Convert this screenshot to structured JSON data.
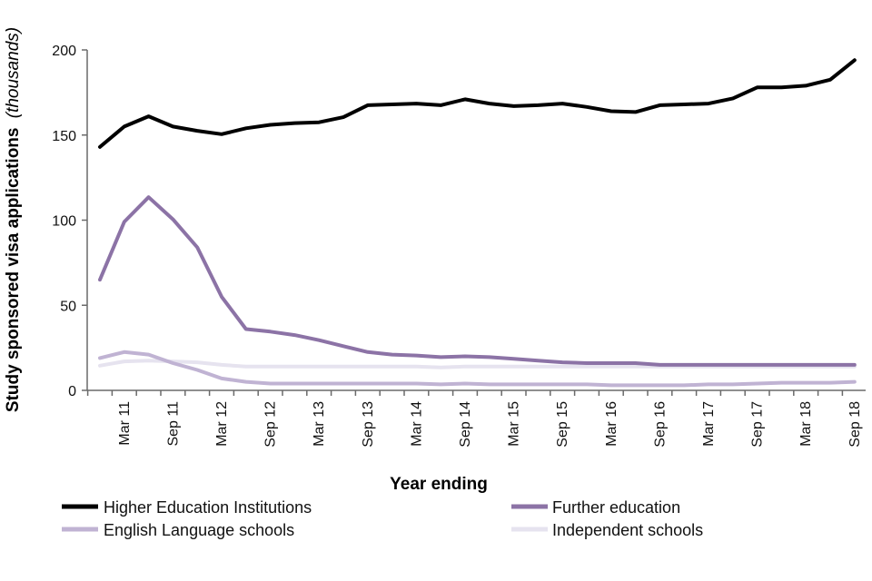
{
  "chart_data": {
    "type": "line",
    "title": "",
    "xlabel": "Year ending",
    "ylabel_main": "Study sponsored visa applications",
    "ylabel_unit": "(thousands)",
    "ylim": [
      0,
      200
    ],
    "yticks": [
      "0",
      "50",
      "100",
      "150",
      "200"
    ],
    "x_tick_labels": [
      "Mar 11",
      "Sep 11",
      "Mar 12",
      "Sep 12",
      "Mar 13",
      "Sep 13",
      "Mar 14",
      "Sep 14",
      "Mar 15",
      "Sep 15",
      "Mar 16",
      "Sep 16",
      "Mar 17",
      "Sep 17",
      "Mar 18",
      "Sep 18"
    ],
    "series": [
      {
        "name": "Higher Education Institutions",
        "color": "#000000",
        "values": [
          143,
          155,
          161,
          155,
          152.5,
          150.5,
          154,
          156,
          157,
          157.5,
          160.5,
          167.5,
          168,
          168.5,
          167.5,
          171,
          168.5,
          167,
          167.5,
          168.5,
          166.5,
          164,
          163.5,
          167.5,
          168,
          168.5,
          171.5,
          178,
          178,
          179,
          182.5,
          194
        ]
      },
      {
        "name": "Further education",
        "color": "#8c73a6",
        "values": [
          65,
          99,
          113.5,
          100.5,
          84,
          55,
          36,
          34.5,
          32.5,
          29.5,
          26,
          22.5,
          21,
          20.5,
          19.5,
          20,
          19.5,
          18.5,
          17.5,
          16.5,
          16,
          16,
          16,
          15,
          15,
          15,
          15,
          15,
          15,
          15,
          15,
          15
        ]
      },
      {
        "name": "English Language schools",
        "color": "#c0b3d3",
        "values": [
          19,
          22.5,
          21,
          16,
          12,
          7,
          5,
          4,
          4,
          4,
          4,
          4,
          4,
          4,
          3.5,
          4,
          3.5,
          3.5,
          3.5,
          3.5,
          3.5,
          3,
          3,
          3,
          3,
          3.5,
          3.5,
          4,
          4.5,
          4.5,
          4.5,
          5
        ]
      },
      {
        "name": "Independent schools",
        "color": "#e6e3ef",
        "values": [
          14.5,
          17,
          17.5,
          17,
          16.5,
          15,
          14,
          14,
          14,
          14,
          14,
          14,
          14,
          14,
          13.5,
          14,
          14,
          14,
          14,
          14,
          14,
          14,
          14,
          14,
          14,
          14,
          14,
          14,
          14,
          14,
          14,
          14
        ]
      }
    ]
  }
}
